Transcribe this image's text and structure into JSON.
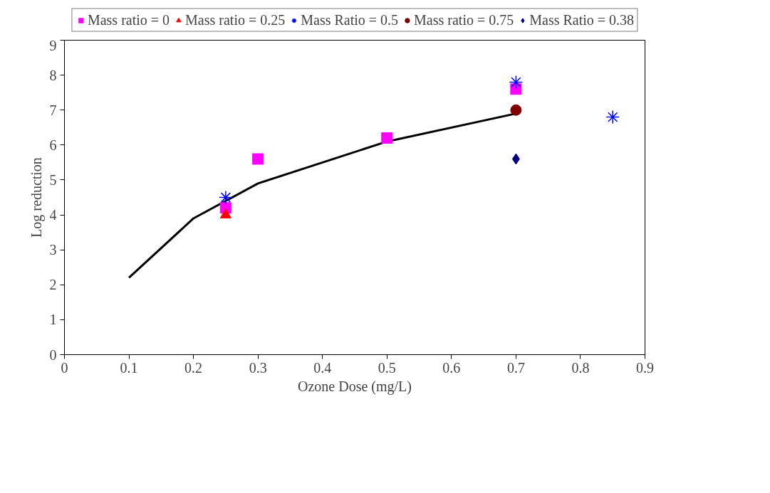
{
  "chart_data": {
    "type": "scatter",
    "xlabel": "Ozone Dose (mg/L)",
    "ylabel": "Log reduction",
    "xlim": [
      0,
      0.9
    ],
    "xticks": [
      0,
      0.1,
      0.2,
      0.3,
      0.4,
      0.5,
      0.6,
      0.7,
      0.8,
      0.9
    ],
    "ylim": [
      0,
      9
    ],
    "yticks": [
      0,
      1,
      2,
      3,
      4,
      5,
      6,
      7,
      8,
      9
    ],
    "grid": false,
    "legend": "top",
    "series": [
      {
        "type": "line",
        "color": "#000000",
        "x": [
          0.1,
          0.2,
          0.3,
          0.5,
          0.7
        ],
        "values": [
          2.2,
          3.9,
          4.9,
          6.1,
          6.9
        ],
        "marker": "none",
        "line_style": "solid"
      },
      {
        "name": "Mass ratio = 0",
        "color": "#ff00ff",
        "marker": "square",
        "x": [
          0.25,
          0.3,
          0.5,
          0.7
        ],
        "values": [
          4.2,
          5.6,
          6.2,
          7.6
        ]
      },
      {
        "name": "Mass ratio = 0.25",
        "color": "#ff0000",
        "marker": "triangle",
        "x": [
          0.25
        ],
        "values": [
          4.0
        ]
      },
      {
        "name": "Mass Ratio = 0.5",
        "color": "#0000ff",
        "marker": "cross",
        "x": [
          0.25,
          0.7,
          0.85
        ],
        "values": [
          4.5,
          7.8,
          6.8
        ]
      },
      {
        "name": "Mass ratio = 0.75",
        "color": "#800000",
        "marker": "circle",
        "x": [
          0.7
        ],
        "values": [
          7.0
        ]
      },
      {
        "name": "Mass Ratio = 0.38",
        "color": "#000080",
        "marker": "diamond",
        "x": [
          0.7
        ],
        "values": [
          5.6
        ]
      }
    ]
  }
}
